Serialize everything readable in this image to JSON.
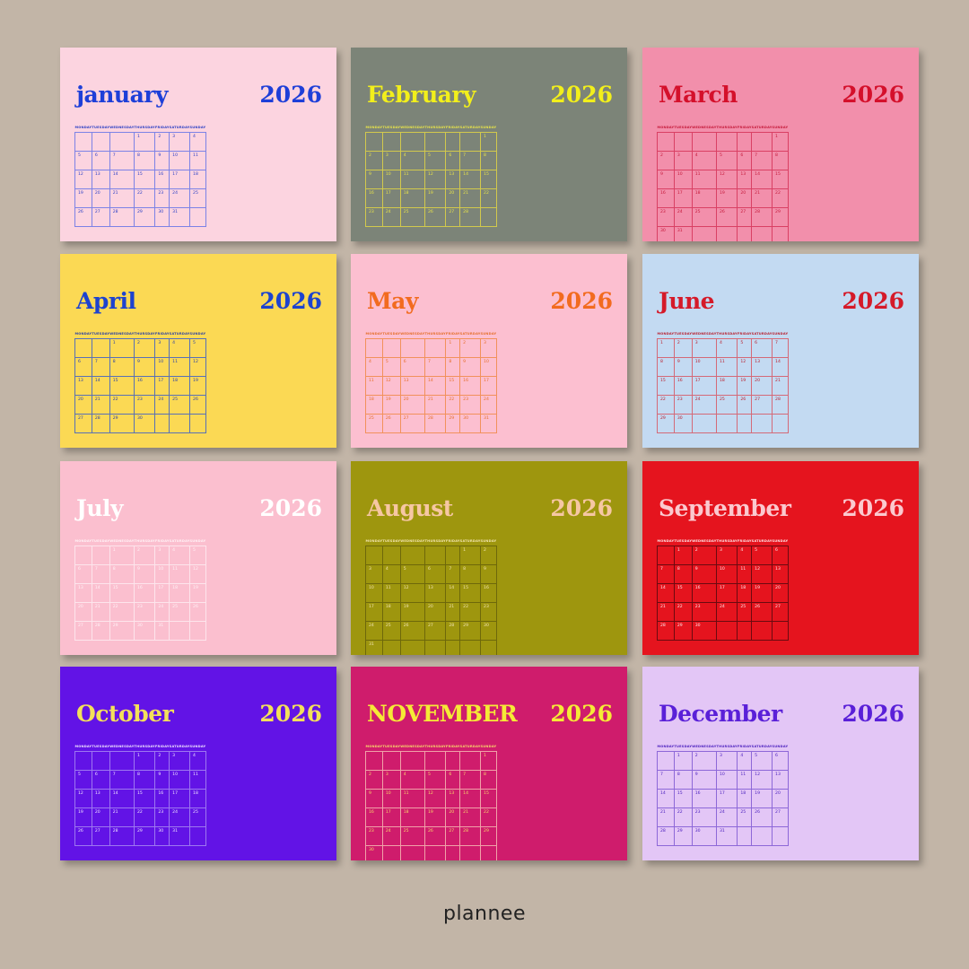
{
  "weekdays": [
    "MONDAY",
    "TUESDAY",
    "WEDNESDAY",
    "THURSDAY",
    "FRIDAY",
    "SATURDAY",
    "SUNDAY"
  ],
  "year": "2026",
  "brand": "plannee",
  "months": [
    {
      "name": "january",
      "bg": "#fcd4e0",
      "title": "#1e3fd8",
      "grid": "#7c82e6",
      "text": "#2b3fc4",
      "start": 3,
      "days": 31
    },
    {
      "name": "February",
      "bg": "#7c8478",
      "title": "#f2ef1b",
      "grid": "#d2c94c",
      "text": "#e7e34a",
      "start": 6,
      "days": 28
    },
    {
      "name": "March",
      "bg": "#f28fab",
      "title": "#d4102b",
      "grid": "#d94064",
      "text": "#c5193a",
      "start": 6,
      "days": 31
    },
    {
      "name": "April",
      "bg": "#fbd954",
      "title": "#1d43cf",
      "grid": "#5870b6",
      "text": "#273fa6",
      "start": 2,
      "days": 30
    },
    {
      "name": "May",
      "bg": "#fcbfd0",
      "title": "#f26b1f",
      "grid": "#f2915c",
      "text": "#e56f2c",
      "start": 4,
      "days": 31
    },
    {
      "name": "June",
      "bg": "#c3daf2",
      "title": "#d51a29",
      "grid": "#d46a78",
      "text": "#b81f2e",
      "start": 0,
      "days": 30
    },
    {
      "name": "July",
      "bg": "#fbbfcf",
      "title": "#ffffff",
      "grid": "#fde5ec",
      "text": "#fff2f6",
      "start": 2,
      "days": 31
    },
    {
      "name": "August",
      "bg": "#9e960e",
      "title": "#f6c7a3",
      "grid": "#6e680a",
      "text": "#f2e4b0",
      "start": 5,
      "days": 31
    },
    {
      "name": "September",
      "bg": "#e5141e",
      "title": "#fbc9cf",
      "grid": "#6b0a10",
      "text": "#fde6e8",
      "start": 1,
      "days": 30
    },
    {
      "name": "October",
      "bg": "#6213e6",
      "title": "#f3e05a",
      "grid": "#9e77f0",
      "text": "#efe2ff",
      "start": 3,
      "days": 31
    },
    {
      "name": "NOVEMBER",
      "bg": "#cf1c6c",
      "title": "#f5ea36",
      "grid": "#f0a1a8",
      "text": "#f8d86a",
      "start": 6,
      "days": 30
    },
    {
      "name": "December",
      "bg": "#e3c6f6",
      "title": "#5a20d8",
      "grid": "#8d68d8",
      "text": "#4d22bf",
      "start": 1,
      "days": 31
    }
  ]
}
